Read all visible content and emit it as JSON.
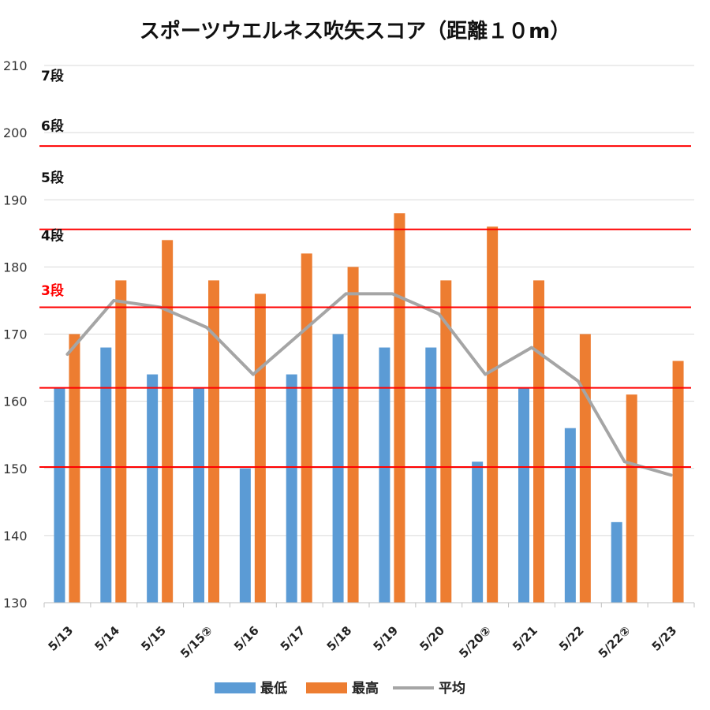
{
  "chart_data": {
    "type": "bar",
    "title": "スポーツウエルネス吹矢スコア（距離１０m）",
    "xlabel": "",
    "ylabel": "",
    "ylim": [
      130,
      210
    ],
    "yticks": [
      130,
      140,
      150,
      160,
      170,
      180,
      190,
      200,
      210
    ],
    "grid": true,
    "legend_position": "bottom",
    "categories": [
      "5/13",
      "5/14",
      "5/15",
      "5/15②",
      "5/16",
      "5/17",
      "5/18",
      "5/19",
      "5/20",
      "5/20②",
      "5/21",
      "5/22",
      "5/22②",
      "5/23"
    ],
    "series": [
      {
        "name": "最低",
        "type": "bar",
        "color": "#5b9bd5",
        "values": [
          162,
          168,
          164,
          162,
          150,
          164,
          170,
          168,
          168,
          151,
          162,
          156,
          142,
          null
        ]
      },
      {
        "name": "最高",
        "type": "bar",
        "color": "#ed7d31",
        "values": [
          170,
          178,
          184,
          178,
          176,
          182,
          180,
          188,
          178,
          186,
          178,
          170,
          161,
          166
        ]
      },
      {
        "name": "平均",
        "type": "line",
        "color": "#a5a5a5",
        "values": [
          167,
          175,
          174,
          171,
          164,
          170,
          176,
          176,
          173,
          164,
          168,
          163,
          151,
          149
        ]
      }
    ],
    "rank_lines": [
      {
        "value": 198,
        "color": "#ff0000"
      },
      {
        "value": 185.6,
        "color": "#ff0000"
      },
      {
        "value": 174,
        "color": "#ff0000"
      },
      {
        "value": 162,
        "color": "#ff0000"
      },
      {
        "value": 150.2,
        "color": "#ff0000"
      }
    ],
    "rank_labels": [
      {
        "text": "7段",
        "value": 208.5,
        "color": "#111111"
      },
      {
        "text": "6段",
        "value": 201,
        "color": "#111111"
      },
      {
        "text": "5段",
        "value": 193.3,
        "color": "#111111"
      },
      {
        "text": "4段",
        "value": 184.7,
        "color": "#111111"
      },
      {
        "text": "3段",
        "value": 176.5,
        "color": "#ff0000"
      }
    ]
  }
}
